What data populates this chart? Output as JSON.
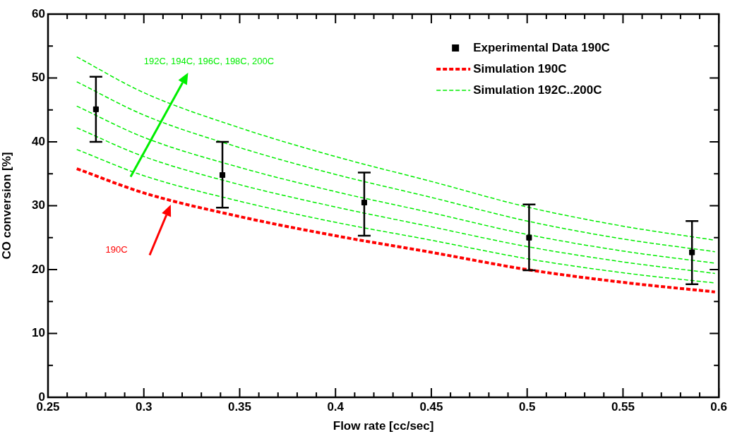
{
  "chart_data": {
    "type": "line",
    "xlabel": "Flow rate [cc/sec]",
    "ylabel": "CO conversion [%]",
    "xlim": [
      0.25,
      0.6
    ],
    "ylim": [
      0,
      60
    ],
    "xticks": [
      0.25,
      {
        "value": 0.26,
        "label": null
      },
      {
        "value": 0.27,
        "label": null
      },
      {
        "value": 0.28,
        "label": null
      },
      {
        "value": 0.29,
        "label": null
      },
      0.3,
      {
        "value": 0.31,
        "label": null
      },
      {
        "value": 0.32,
        "label": null
      },
      {
        "value": 0.33,
        "label": null
      },
      {
        "value": 0.34,
        "label": null
      },
      0.35,
      {
        "value": 0.36,
        "label": null
      },
      {
        "value": 0.37,
        "label": null
      },
      {
        "value": 0.38,
        "label": null
      },
      {
        "value": 0.39,
        "label": null
      },
      0.4,
      {
        "value": 0.41,
        "label": null
      },
      {
        "value": 0.42,
        "label": null
      },
      {
        "value": 0.43,
        "label": null
      },
      {
        "value": 0.44,
        "label": null
      },
      0.45,
      {
        "value": 0.46,
        "label": null
      },
      {
        "value": 0.47,
        "label": null
      },
      {
        "value": 0.48,
        "label": null
      },
      {
        "value": 0.49,
        "label": null
      },
      0.5,
      {
        "value": 0.51,
        "label": null
      },
      {
        "value": 0.52,
        "label": null
      },
      {
        "value": 0.53,
        "label": null
      },
      {
        "value": 0.54,
        "label": null
      },
      0.55,
      {
        "value": 0.56,
        "label": null
      },
      {
        "value": 0.57,
        "label": null
      },
      {
        "value": 0.58,
        "label": null
      },
      {
        "value": 0.59,
        "label": null
      },
      0.6
    ],
    "yticks": [
      0,
      {
        "value": 5,
        "label": null
      },
      10,
      {
        "value": 15,
        "label": null
      },
      20,
      {
        "value": 25,
        "label": null
      },
      30,
      {
        "value": 35,
        "label": null
      },
      40,
      {
        "value": 45,
        "label": null
      },
      50,
      {
        "value": 55,
        "label": null
      },
      60
    ],
    "legend": "top right",
    "grid": false,
    "annotations": [
      "192C, 194C, 196C, 198C, 200C",
      "190C"
    ],
    "series": [
      {
        "name": "Experimental Data 190C",
        "type": "scatter",
        "marker": "square",
        "color": "#000000",
        "x": [
          0.275,
          0.341,
          0.415,
          0.501,
          0.586
        ],
        "values": [
          45.1,
          34.8,
          30.5,
          25.0,
          22.7
        ],
        "errors": [
          [
            40,
            50.2
          ],
          [
            29.7,
            40
          ],
          [
            25.3,
            35.2
          ],
          [
            19.9,
            30.2
          ],
          [
            17.7,
            27.6
          ]
        ]
      },
      {
        "name": "Simulation 190C",
        "color": "#ff0000",
        "line_style": "dashed",
        "marker": "none",
        "x": [
          0.265,
          0.3,
          0.35,
          0.4,
          0.45,
          0.5,
          0.55,
          0.598
        ],
        "values": [
          35.8,
          32.0,
          28.3,
          25.3,
          22.7,
          20.0,
          18.0,
          16.5
        ]
      },
      {
        "name": "Simulation 192C..200C",
        "color": "#00ee00",
        "line_style": "dashed",
        "marker": "none",
        "x": [
          0.265,
          0.3,
          0.35,
          0.4,
          0.45,
          0.5,
          0.55,
          0.598
        ],
        "values": [
          38.8,
          34.7,
          30.7,
          27.4,
          24.6,
          21.7,
          19.5,
          17.9
        ]
      },
      {
        "color": "#00ee00",
        "line_style": "dashed",
        "marker": "none",
        "x": [
          0.265,
          0.3,
          0.35,
          0.4,
          0.45,
          0.5,
          0.55,
          0.598
        ],
        "values": [
          42.2,
          37.7,
          33.3,
          29.8,
          26.7,
          23.6,
          21.2,
          19.4
        ]
      },
      {
        "color": "#00ee00",
        "line_style": "dashed",
        "marker": "none",
        "x": [
          0.265,
          0.3,
          0.35,
          0.4,
          0.45,
          0.5,
          0.55,
          0.598
        ],
        "values": [
          45.6,
          40.7,
          36.0,
          32.2,
          28.9,
          25.5,
          22.9,
          21.0
        ]
      },
      {
        "color": "#00ee00",
        "line_style": "dashed",
        "marker": "none",
        "x": [
          0.265,
          0.3,
          0.35,
          0.4,
          0.45,
          0.5,
          0.55,
          0.598
        ],
        "values": [
          49.4,
          44.2,
          39.1,
          34.9,
          31.3,
          27.6,
          24.8,
          22.8
        ]
      },
      {
        "color": "#00ee00",
        "line_style": "dashed",
        "marker": "none",
        "x": [
          0.265,
          0.3,
          0.35,
          0.4,
          0.45,
          0.5,
          0.55,
          0.598
        ],
        "values": [
          53.3,
          47.7,
          42.2,
          37.7,
          33.8,
          29.8,
          26.8,
          24.6
        ]
      }
    ]
  }
}
